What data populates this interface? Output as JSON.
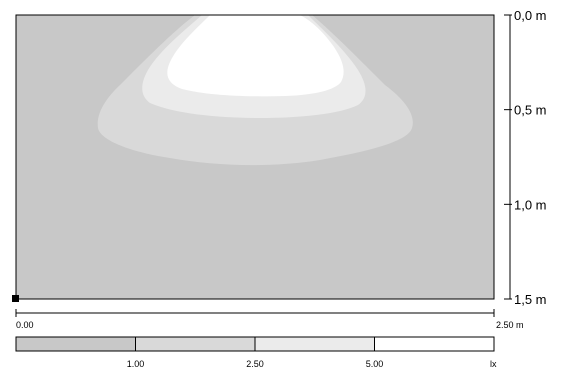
{
  "chart_data": {
    "type": "heatmap",
    "title": "",
    "x_axis": {
      "start_label": "0.00",
      "end_label": "2.50 m",
      "range_m": [
        0,
        2.5
      ]
    },
    "y_axis": {
      "ticks": [
        "0,0 m",
        "0,5 m",
        "1,0 m",
        "1,5 m"
      ],
      "values_m": [
        0,
        0.5,
        1.0,
        1.5
      ]
    },
    "levels": [
      {
        "name": "< 1.00 lx",
        "color": "#c8c8c8"
      },
      {
        "name": "1.00 – 2.50 lx",
        "color": "#d9d9d9"
      },
      {
        "name": "2.50 – 5.00 lx",
        "color": "#ebebeb"
      },
      {
        "name": "≥ 5.00 lx",
        "color": "#ffffff"
      }
    ],
    "legend": {
      "values": [
        "1.00",
        "2.50",
        "5.00"
      ],
      "unit": "lx"
    }
  },
  "colors": {
    "frame": "#000000",
    "background": "#c8c8c8"
  }
}
